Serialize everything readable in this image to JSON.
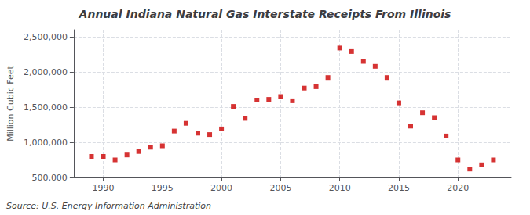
{
  "chart_data": {
    "type": "scatter",
    "title": "Annual Indiana Natural Gas Interstate Receipts From Illinois",
    "ylabel": "Million Cubic Feet",
    "annotation": "Source: U.S. Energy Information Administration",
    "x": [
      1989,
      1990,
      1991,
      1992,
      1993,
      1994,
      1995,
      1996,
      1997,
      1998,
      1999,
      2000,
      2001,
      2002,
      2003,
      2004,
      2005,
      2006,
      2007,
      2008,
      2009,
      2010,
      2011,
      2012,
      2013,
      2014,
      2015,
      2016,
      2017,
      2018,
      2019,
      2020,
      2021,
      2022,
      2023
    ],
    "values": [
      800000,
      800000,
      750000,
      820000,
      870000,
      930000,
      950000,
      1160000,
      1270000,
      1130000,
      1110000,
      1190000,
      1510000,
      1340000,
      1600000,
      1610000,
      1650000,
      1590000,
      1770000,
      1790000,
      1920000,
      2340000,
      2290000,
      2150000,
      2080000,
      1920000,
      1560000,
      1230000,
      1420000,
      1350000,
      1090000,
      750000,
      620000,
      680000,
      750000
    ],
    "color": "#cc0000",
    "marker": "square",
    "xlim": [
      1987.5,
      2024.5
    ],
    "xticks": [
      1990,
      1995,
      2000,
      2005,
      2010,
      2015,
      2020
    ],
    "ylim": [
      500000,
      2600000
    ],
    "yticks": [
      {
        "value": 500000,
        "label": "500,000"
      },
      {
        "value": 1000000,
        "label": "1,000,000"
      },
      {
        "value": 1500000,
        "label": "1,500,000"
      },
      {
        "value": 2000000,
        "label": "2,000,000"
      },
      {
        "value": 2500000,
        "label": "2,500,000"
      }
    ],
    "grid": true
  }
}
